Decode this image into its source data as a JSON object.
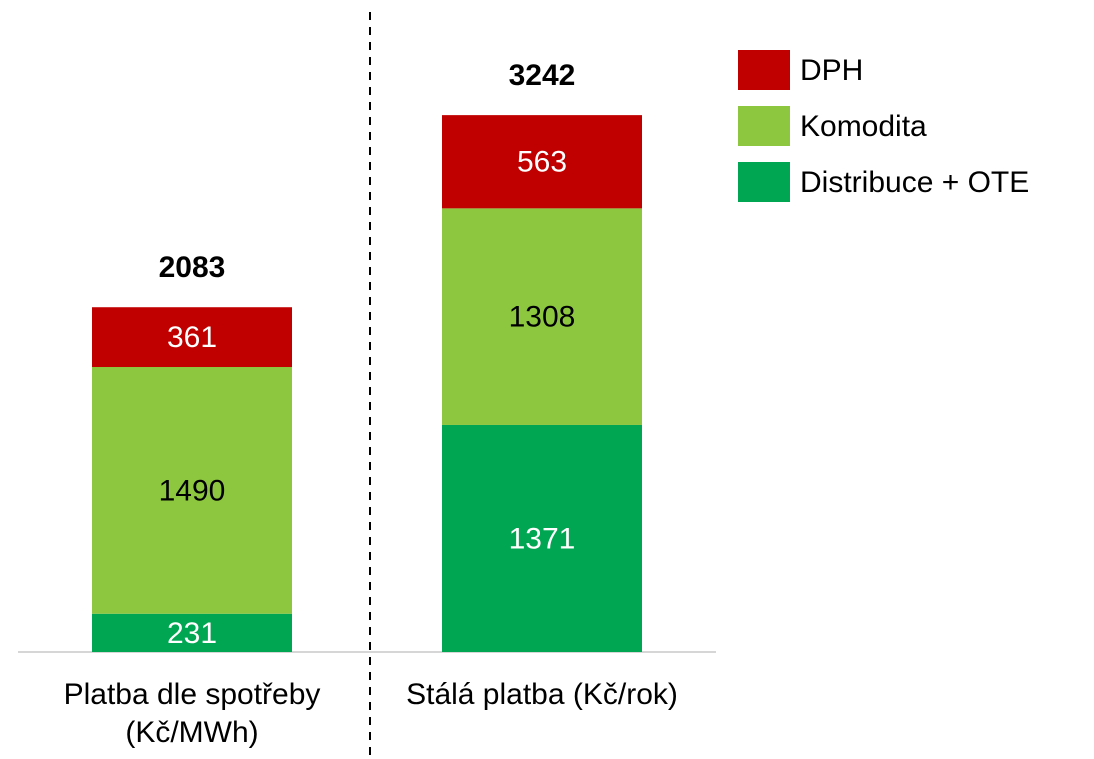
{
  "chart_data": {
    "type": "stacked_bar",
    "categories": [
      "Platba dle spotřeby (Kč/MWh)",
      "Stálá platba (Kč/rok)"
    ],
    "series": [
      {
        "name": "Distribuce + OTE",
        "color": "#00a651",
        "label_color": "#ffffff",
        "values": [
          231,
          1371
        ]
      },
      {
        "name": "Komodita",
        "color": "#8dc63f",
        "label_color": "#000000",
        "values": [
          1490,
          1308
        ]
      },
      {
        "name": "DPH",
        "color": "#c00000",
        "label_color": "#ffffff",
        "values": [
          361,
          563
        ]
      }
    ],
    "totals": [
      2083,
      3242
    ],
    "ylim": [
      0,
      3500
    ],
    "legend": "top-right"
  }
}
